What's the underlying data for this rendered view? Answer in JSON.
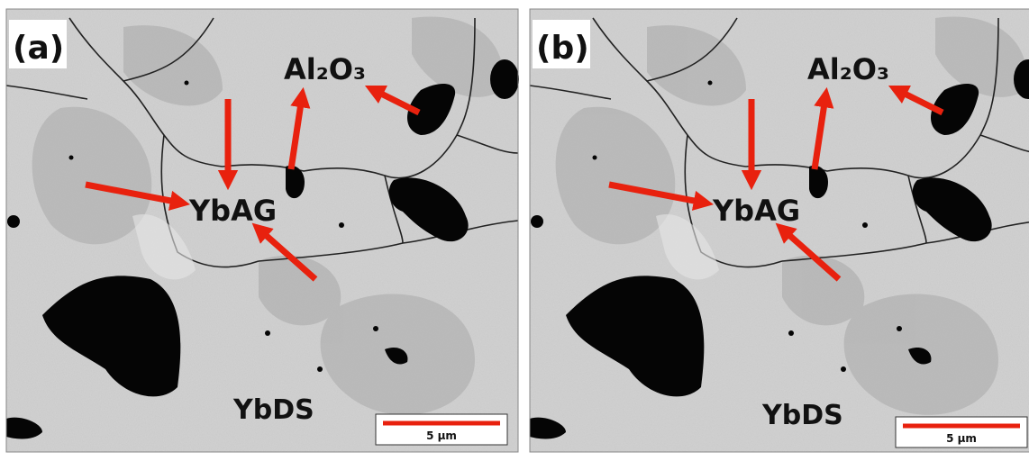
{
  "panels": [
    {
      "label": "(a)",
      "annotations": {
        "alumina": "Al₂O₃",
        "garnet": "YbAG",
        "disilicate": "YbDS"
      },
      "scale_bar": "5 µm"
    },
    {
      "label": "(b)",
      "annotations": {
        "alumina": "Al₂O₃",
        "garnet": "YbAG",
        "disilicate": "YbDS"
      },
      "scale_bar": "5 µm"
    }
  ]
}
